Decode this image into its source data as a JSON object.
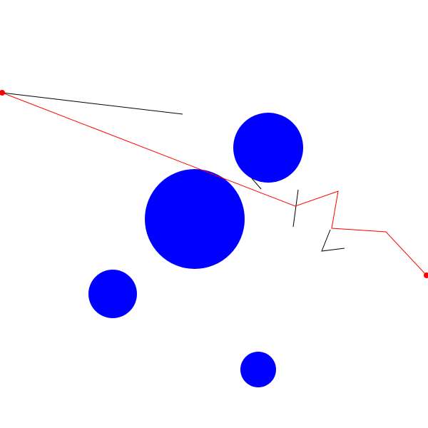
{
  "scene": {
    "background": "#ffffff",
    "obstacle_color": "#0000ff",
    "path_color": "#ff0000",
    "segment_color": "#000000",
    "endpoint_color": "#ff0000"
  }
}
